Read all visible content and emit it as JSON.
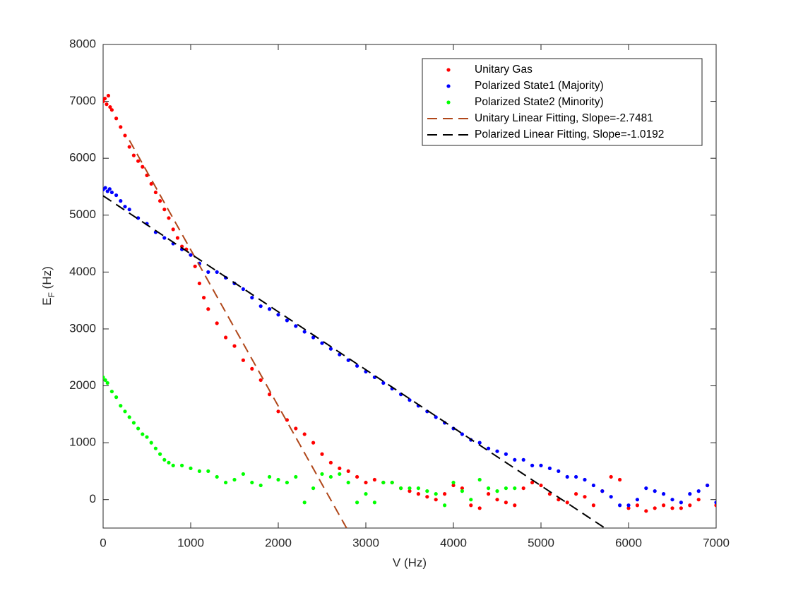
{
  "chart_data": {
    "type": "scatter",
    "xlabel": "V (Hz)",
    "ylabel": [
      "E",
      "F",
      " (Hz)"
    ],
    "xlim": [
      0,
      7000
    ],
    "xticks": [
      0,
      1000,
      2000,
      3000,
      4000,
      5000,
      6000,
      7000
    ],
    "ylim": [
      -500,
      8000
    ],
    "yticks": [
      0,
      1000,
      2000,
      3000,
      4000,
      5000,
      6000,
      7000,
      8000
    ],
    "legend": "northeast",
    "series": [
      {
        "name": "Unitary Gas",
        "color": "#ff0000",
        "mode": "markers",
        "x": [
          0,
          20,
          40,
          60,
          80,
          100,
          150,
          200,
          250,
          300,
          350,
          400,
          450,
          500,
          550,
          600,
          650,
          700,
          750,
          800,
          850,
          900,
          950,
          1000,
          1050,
          1100,
          1150,
          1200,
          1300,
          1400,
          1500,
          1600,
          1700,
          1800,
          1900,
          2000,
          2100,
          2200,
          2300,
          2400,
          2500,
          2600,
          2700,
          2800,
          2900,
          3000,
          3100,
          3200,
          3300,
          3400,
          3500,
          3600,
          3700,
          3800,
          3900,
          4000,
          4100,
          4200,
          4300,
          4400,
          4500,
          4600,
          4700,
          4800,
          4900,
          5000,
          5100,
          5200,
          5300,
          5400,
          5500,
          5600,
          5700,
          5800,
          5900,
          6000,
          6100,
          6200,
          6300,
          6400,
          6500,
          6600,
          6700,
          6800,
          6900,
          7000
        ],
        "values": [
          7000,
          7050,
          6950,
          7100,
          6900,
          6850,
          6700,
          6550,
          6400,
          6200,
          6050,
          5950,
          5850,
          5700,
          5550,
          5400,
          5250,
          5100,
          4950,
          4750,
          4600,
          4450,
          4400,
          4300,
          4100,
          3800,
          3550,
          3350,
          3100,
          2850,
          2700,
          2450,
          2300,
          2100,
          1850,
          1550,
          1400,
          1250,
          1150,
          1000,
          800,
          650,
          550,
          500,
          400,
          300,
          350,
          300,
          300,
          200,
          150,
          100,
          50,
          0,
          100,
          250,
          200,
          -100,
          -150,
          100,
          0,
          -50,
          -100,
          200,
          300,
          250,
          100,
          0,
          -50,
          100,
          50,
          -100,
          150,
          400,
          350,
          -150,
          -100,
          -200,
          -150,
          -100,
          -150,
          -150,
          -100,
          0,
          250,
          -100
        ]
      },
      {
        "name": "Polarized State1 (Majority)",
        "color": "#0000ff",
        "mode": "markers",
        "x": [
          0,
          25,
          50,
          75,
          100,
          150,
          200,
          250,
          300,
          400,
          500,
          600,
          700,
          800,
          900,
          1000,
          1100,
          1200,
          1300,
          1400,
          1500,
          1600,
          1700,
          1800,
          1900,
          2000,
          2100,
          2200,
          2300,
          2400,
          2500,
          2600,
          2700,
          2800,
          2900,
          3000,
          3100,
          3200,
          3300,
          3400,
          3500,
          3600,
          3700,
          3800,
          3900,
          4000,
          4100,
          4200,
          4300,
          4400,
          4500,
          4600,
          4700,
          4800,
          4900,
          5000,
          5100,
          5200,
          5300,
          5400,
          5500,
          5600,
          5700,
          5800,
          5900,
          6000,
          6100,
          6200,
          6300,
          6400,
          6500,
          6600,
          6700,
          6800,
          6900,
          7000
        ],
        "values": [
          5450,
          5480,
          5420,
          5460,
          5400,
          5350,
          5250,
          5150,
          5100,
          4950,
          4850,
          4700,
          4600,
          4500,
          4400,
          4300,
          4150,
          4000,
          4000,
          3900,
          3800,
          3700,
          3550,
          3400,
          3350,
          3250,
          3150,
          3050,
          2950,
          2850,
          2750,
          2650,
          2550,
          2450,
          2350,
          2250,
          2150,
          2050,
          1950,
          1850,
          1750,
          1650,
          1550,
          1450,
          1350,
          1250,
          1150,
          1050,
          1000,
          900,
          850,
          800,
          700,
          700,
          600,
          600,
          550,
          500,
          400,
          400,
          350,
          250,
          150,
          50,
          -100,
          -100,
          0,
          200,
          150,
          100,
          0,
          -50,
          100,
          150,
          250,
          -50
        ]
      },
      {
        "name": "Polarized State2 (Minority)",
        "color": "#00ff00",
        "mode": "markers",
        "x": [
          0,
          25,
          50,
          100,
          150,
          200,
          250,
          300,
          350,
          400,
          450,
          500,
          550,
          600,
          650,
          700,
          750,
          800,
          900,
          1000,
          1100,
          1200,
          1300,
          1400,
          1500,
          1600,
          1700,
          1800,
          1900,
          2000,
          2100,
          2200,
          2300,
          2400,
          2500,
          2600,
          2700,
          2800,
          2900,
          3000,
          3100,
          3200,
          3300,
          3400,
          3500,
          3600,
          3700,
          3800,
          3900,
          4000,
          4100,
          4200,
          4300,
          4400,
          4500,
          4600,
          4700
        ],
        "values": [
          2150,
          2100,
          2050,
          1900,
          1800,
          1650,
          1550,
          1450,
          1350,
          1250,
          1150,
          1100,
          1000,
          900,
          800,
          700,
          650,
          600,
          600,
          550,
          500,
          500,
          400,
          300,
          350,
          450,
          300,
          250,
          400,
          350,
          300,
          400,
          -50,
          200,
          450,
          400,
          450,
          300,
          -50,
          100,
          -50,
          300,
          300,
          200,
          200,
          200,
          150,
          100,
          -100,
          300,
          150,
          0,
          350,
          200,
          150,
          200,
          200
        ]
      },
      {
        "name": "Unitary Linear Fitting, Slope=-2.7481",
        "color": "#b0471a",
        "mode": "dashed-line",
        "x": [
          300,
          2780
        ],
        "values": [
          6316,
          -500
        ]
      },
      {
        "name": "Polarized Linear Fitting, Slope=-1.0192",
        "color": "#000000",
        "mode": "dashed-line",
        "x": [
          0,
          5730
        ],
        "values": [
          5340,
          -500
        ]
      }
    ]
  }
}
